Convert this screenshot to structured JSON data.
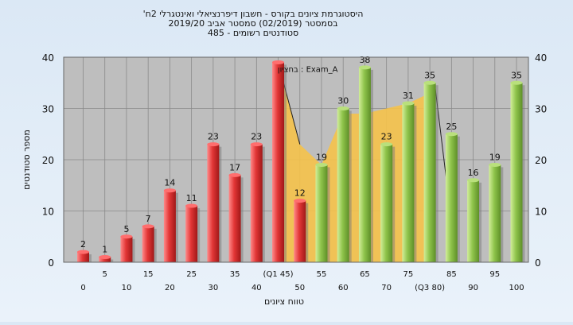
{
  "chart_data": {
    "type": "bar",
    "title_lines": [
      "'היסטוגרמת ציונים בקורס - חשבון דיפרנציאלי ואינטגרלי 2ח",
      "בסמסטר  (02/2019)  סמסטר אביב 2019/20",
      "485 - סטודנטים רשומים"
    ],
    "xlabel": "טווח ציונים",
    "ylabel": "מספר סטודנטים",
    "ylim": [
      0,
      40
    ],
    "yticks": [
      0,
      10,
      20,
      30,
      40
    ],
    "grid": true,
    "categories": [
      "0",
      "5",
      "10",
      "15",
      "20",
      "25",
      "30",
      "35",
      "40",
      "(Q1 45)",
      "50",
      "55",
      "60",
      "65",
      "70",
      "75",
      "(Q3 80)",
      "85",
      "90",
      "95",
      "100"
    ],
    "series": [
      {
        "values": [
          2,
          1,
          5,
          7,
          14,
          11,
          23,
          17,
          23,
          39,
          12,
          19,
          30,
          38,
          23,
          31,
          35,
          25,
          16,
          19,
          35
        ]
      }
    ],
    "data_labels": [
      "2",
      "1",
      "5",
      "7",
      "14",
      "11",
      "23",
      "17",
      "23",
      "",
      "12",
      "19",
      "30",
      "38",
      "23",
      "31",
      "35",
      "25",
      "16",
      "19",
      "35"
    ],
    "area_values": [
      null,
      null,
      null,
      null,
      null,
      null,
      null,
      null,
      null,
      39,
      23,
      19,
      29,
      29,
      30,
      31,
      33,
      null,
      null,
      null,
      null
    ],
    "annotation": "בחציון : Exam_A",
    "colors": {
      "fail": "#e03a3a",
      "pass": "#8ec44a",
      "area": "#f5c24a",
      "plot_bg": "#bebebe",
      "grid": "#8a8a8a"
    }
  }
}
